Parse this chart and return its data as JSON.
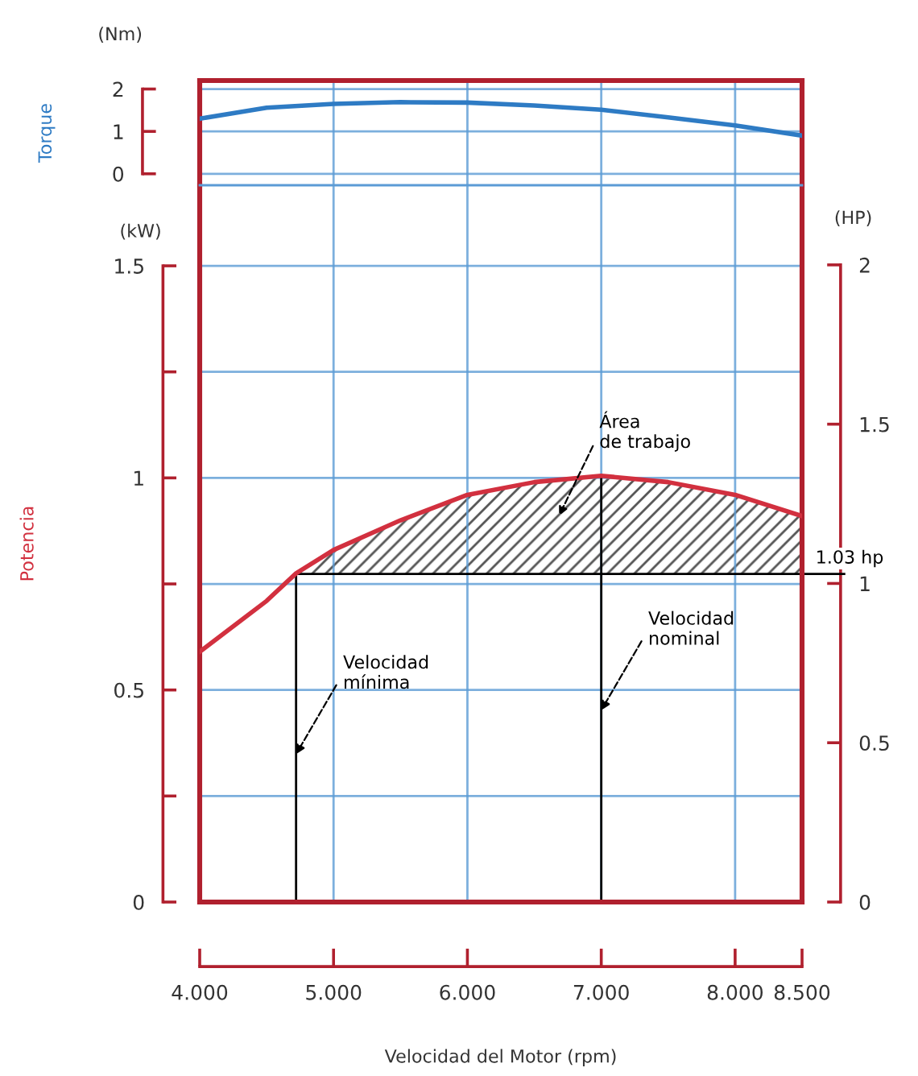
{
  "chart_data": [
    {
      "type": "line",
      "ylabel": "Torque",
      "annotations": [
        "(Nm)"
      ],
      "xlim": [
        4,
        8.5
      ],
      "ylim": [
        -0.27,
        2.2
      ],
      "yticks": [
        0,
        1,
        2
      ],
      "tick_labels": "y",
      "grid": true,
      "series": [
        {
          "color": "#2e7bc4",
          "x": [
            4,
            4.5,
            5,
            5.5,
            6,
            6.5,
            7,
            7.5,
            8,
            8.5
          ],
          "values": [
            1.3,
            1.56,
            1.65,
            1.69,
            1.68,
            1.61,
            1.51,
            1.33,
            1.14,
            0.9
          ]
        }
      ]
    },
    {
      "type": "line",
      "ylabel": "Potencia",
      "y2label": "(HP)",
      "xlabel": "Velocidad del Motor (rpm)",
      "annotations": [
        "(kW)",
        "Área de trabajo"
      ],
      "xlim": [
        4,
        8.5
      ],
      "xticks": [
        {
          "value": 4,
          "label": "4.000"
        },
        {
          "value": 5,
          "label": "5.000"
        },
        {
          "value": 6,
          "label": "6.000"
        },
        {
          "value": 7,
          "label": "7.000"
        },
        {
          "value": 8,
          "label": "8.000"
        },
        {
          "value": 8.5,
          "label": "8.500"
        }
      ],
      "ylim": [
        0,
        1.69
      ],
      "yticks": [
        0,
        {
          "value": 0.25,
          "label": null
        },
        0.5,
        {
          "value": 0.75,
          "label": null
        },
        1,
        {
          "value": 1.25,
          "label": null
        },
        1.5
      ],
      "y2lim": [
        0,
        2.25
      ],
      "y2ticks": [
        0,
        0.5,
        1,
        1.5,
        2
      ],
      "grid": true,
      "ref_lines": [
        {
          "axis": "x",
          "value": 4.72,
          "label": "Velocidad mínima"
        },
        {
          "axis": "x",
          "value": 7,
          "label": "Velocidad nominal"
        },
        {
          "axis": "y2",
          "value": 1.03,
          "label": "1.03 hp"
        }
      ],
      "series": [
        {
          "color": "#d2303f",
          "x": [
            4,
            4.5,
            4.72,
            5,
            5.5,
            6,
            6.5,
            7,
            7.5,
            8,
            8.5
          ],
          "values": [
            0.59,
            0.71,
            0.775,
            0.83,
            0.9,
            0.96,
            0.99,
            1.005,
            0.99,
            0.96,
            0.91
          ]
        },
        {
          "type": "area",
          "axis": "y2",
          "color": "#555555",
          "x": [
            4.72,
            5,
            5.5,
            6,
            6.5,
            7,
            7.5,
            8,
            8.5
          ],
          "values": [
            1.03,
            1.11,
            1.2,
            1.28,
            1.32,
            1.34,
            1.32,
            1.28,
            1.21
          ]
        }
      ]
    }
  ]
}
